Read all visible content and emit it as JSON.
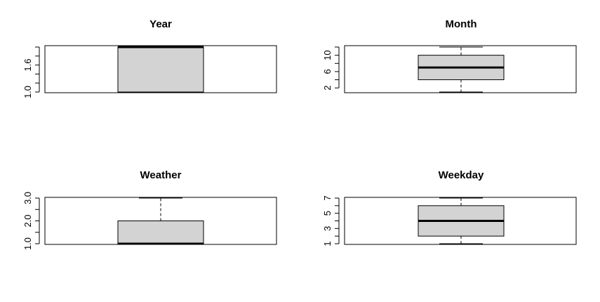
{
  "chart_data": [
    {
      "type": "boxplot",
      "title": "Year",
      "ylim": [
        1.0,
        2.0
      ],
      "yticks": [
        1.0,
        1.2,
        1.4,
        1.6,
        1.8,
        2.0
      ],
      "yticklabels": [
        "1.0",
        "",
        "",
        "1.6",
        "",
        ""
      ],
      "min": 1.0,
      "q1": 1.0,
      "median": 2.0,
      "q3": 2.0,
      "max": 2.0
    },
    {
      "type": "boxplot",
      "title": "Month",
      "ylim": [
        1,
        12
      ],
      "yticks": [
        2,
        4,
        6,
        8,
        10,
        12
      ],
      "yticklabels": [
        "2",
        "",
        "6",
        "",
        "10",
        ""
      ],
      "min": 1,
      "q1": 4,
      "median": 7,
      "q3": 10,
      "max": 12
    },
    {
      "type": "boxplot",
      "title": "Weather",
      "ylim": [
        1.0,
        3.0
      ],
      "yticks": [
        1.0,
        1.5,
        2.0,
        2.5,
        3.0
      ],
      "yticklabels": [
        "1.0",
        "",
        "2.0",
        "",
        "3.0"
      ],
      "min": 1.0,
      "q1": 1.0,
      "median": 1.0,
      "q3": 2.0,
      "max": 3.0
    },
    {
      "type": "boxplot",
      "title": "Weekday",
      "ylim": [
        1,
        7
      ],
      "yticks": [
        1,
        2,
        3,
        4,
        5,
        6,
        7
      ],
      "yticklabels": [
        "1",
        "",
        "3",
        "",
        "5",
        "",
        "7"
      ],
      "min": 1,
      "q1": 2,
      "median": 4,
      "q3": 6,
      "max": 7
    }
  ]
}
